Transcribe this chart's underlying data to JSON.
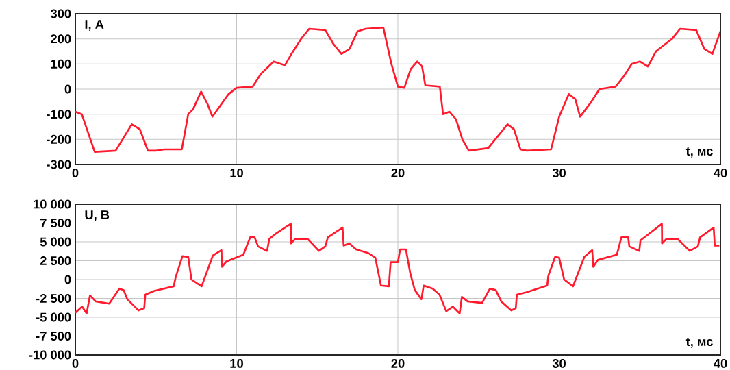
{
  "chart_data": [
    {
      "type": "line",
      "ylabel": "I, A",
      "xlabel": "t, мс",
      "grid": true,
      "xlim": [
        0,
        40
      ],
      "ylim": [
        -300,
        300
      ],
      "xticks": [
        0,
        10,
        20,
        30,
        40
      ],
      "yticks": [
        -300,
        -200,
        -100,
        0,
        100,
        200,
        300
      ],
      "x": [
        0,
        0.4,
        1.2,
        2.5,
        3.5,
        4.0,
        4.5,
        5.0,
        5.5,
        6.6,
        7.0,
        7.3,
        7.8,
        8.2,
        8.5,
        9.5,
        10,
        11,
        11.5,
        12.3,
        13,
        13.4,
        14,
        14.5,
        15.5,
        16,
        16.5,
        17,
        17.5,
        18,
        19.1,
        19.6,
        20,
        20.4,
        20.8,
        21.2,
        21.5,
        21.7,
        22.6,
        22.8,
        23.2,
        23.6,
        24,
        24.4,
        25.6,
        26.8,
        27.2,
        27.6,
        28,
        29.5,
        30,
        30.6,
        31,
        31.3,
        32,
        32.5,
        33.5,
        34,
        34.5,
        35,
        35.5,
        36,
        37,
        37.5,
        38.5,
        39,
        39.5,
        40
      ],
      "series": [
        {
          "color": "#ff1a2e",
          "values": [
            -90,
            -100,
            -250,
            -245,
            -140,
            -160,
            -245,
            -245,
            -240,
            -240,
            -100,
            -80,
            -10,
            -60,
            -110,
            -20,
            5,
            10,
            60,
            110,
            95,
            140,
            200,
            240,
            235,
            180,
            140,
            160,
            230,
            240,
            245,
            100,
            10,
            5,
            80,
            110,
            90,
            15,
            10,
            -100,
            -90,
            -120,
            -200,
            -245,
            -235,
            -140,
            -160,
            -240,
            -245,
            -240,
            -110,
            -20,
            -40,
            -110,
            -50,
            0,
            10,
            50,
            100,
            110,
            90,
            150,
            200,
            240,
            235,
            160,
            140,
            230
          ]
        }
      ]
    },
    {
      "type": "line",
      "ylabel": "U, В",
      "xlabel": "t, мс",
      "grid": true,
      "xlim": [
        0,
        40
      ],
      "ylim": [
        -10000,
        10000
      ],
      "xticks": [
        0,
        10,
        20,
        30,
        40
      ],
      "yticks": [
        {
          "value": -10000,
          "label": "-10 000"
        },
        {
          "value": -7500,
          "label": "-7 500"
        },
        {
          "value": -5000,
          "label": "-5 000"
        },
        {
          "value": -2500,
          "label": "-2 500"
        },
        0,
        {
          "value": 2500,
          "label": "2 500"
        },
        {
          "value": 5000,
          "label": "5 000"
        },
        {
          "value": 7500,
          "label": "7 500"
        },
        {
          "value": 10000,
          "label": "10 000"
        }
      ],
      "x": [
        0,
        0.42,
        0.7,
        0.91,
        1.26,
        2.1,
        2.73,
        3.0,
        3.22,
        3.92,
        4.27,
        4.34,
        4.9,
        6.1,
        6.22,
        6.64,
        7.0,
        7.2,
        7.83,
        8.53,
        9.06,
        9.09,
        9.37,
        10.42,
        10.84,
        11.12,
        11.33,
        11.89,
        12.03,
        12.5,
        13.36,
        13.37,
        13.64,
        14.4,
        15.1,
        15.5,
        15.66,
        16.57,
        16.64,
        16.99,
        17.41,
        18.18,
        18.6,
        18.95,
        19.44,
        19.55,
        20.0,
        20.14,
        20.5,
        20.77,
        21.05,
        21.46,
        21.6,
        22.16,
        22.58,
        23.0,
        23.41,
        23.83,
        23.97,
        24.32,
        25.22,
        25.71,
        26.07,
        26.41,
        27.03,
        27.31,
        27.38,
        27.94,
        29.26,
        29.33,
        29.75,
        30.0,
        30.31,
        30.86,
        31.56,
        32.05,
        32.12,
        32.4,
        33.58,
        33.86,
        34.28,
        34.35,
        34.97,
        35.04,
        35.53,
        36.37,
        36.38,
        36.65,
        37.34,
        38.1,
        38.6,
        38.74,
        39.58,
        39.65,
        39.93
      ],
      "series": [
        {
          "color": "#ff1a2e",
          "values": [
            -4400,
            -3600,
            -4500,
            -2100,
            -2900,
            -3200,
            -1200,
            -1400,
            -2600,
            -4100,
            -3800,
            -2000,
            -1500,
            -900,
            300,
            3100,
            3000,
            0,
            -900,
            3200,
            3900,
            1700,
            2400,
            3300,
            5600,
            5600,
            4400,
            3800,
            5400,
            6200,
            7400,
            4800,
            5400,
            5400,
            3800,
            4400,
            5600,
            6900,
            4500,
            4800,
            4000,
            3500,
            2900,
            -800,
            -900,
            2300,
            2300,
            4000,
            4000,
            800,
            -1400,
            -2600,
            -800,
            -1200,
            -2000,
            -4200,
            -3600,
            -4500,
            -2300,
            -2900,
            -3100,
            -1200,
            -1400,
            -2900,
            -4100,
            -3800,
            -2000,
            -1700,
            -800,
            500,
            3000,
            2900,
            0,
            -900,
            3000,
            3900,
            1700,
            2600,
            3300,
            5600,
            5600,
            4400,
            3800,
            5200,
            6000,
            7400,
            4800,
            5400,
            5400,
            3800,
            4400,
            5600,
            6900,
            4500,
            4500
          ]
        }
      ]
    }
  ]
}
